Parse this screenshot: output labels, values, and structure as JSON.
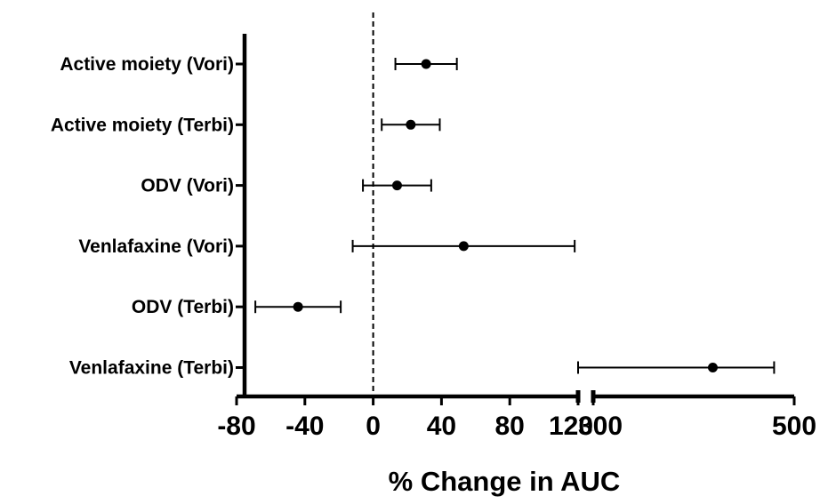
{
  "chart_data": {
    "type": "forest",
    "categories": [
      "Active moiety (Vori)",
      "Active moiety (Terbi)",
      "ODV (Vori)",
      "Venlafaxine (Vori)",
      "ODV (Terbi)",
      "Venlafaxine (Terbi)"
    ],
    "points": [
      {
        "label": "Active moiety (Vori)",
        "estimate": 31,
        "lower": 13,
        "upper": 49
      },
      {
        "label": "Active moiety (Terbi)",
        "estimate": 22,
        "lower": 5,
        "upper": 39
      },
      {
        "label": "ODV (Vori)",
        "estimate": 14,
        "lower": -6,
        "upper": 34
      },
      {
        "label": "Venlafaxine (Vori)",
        "estimate": 53,
        "lower": -12,
        "upper": 118
      },
      {
        "label": "ODV (Terbi)",
        "estimate": -44,
        "lower": -69,
        "upper": -19
      },
      {
        "label": "Venlafaxine (Terbi)",
        "estimate": 419,
        "lower": 285,
        "upper": 480
      }
    ],
    "xlabel": "% Change in AUC",
    "xaxis_segments": [
      {
        "range": [
          -80,
          120
        ],
        "ticks": [
          "-80",
          "-40",
          "0",
          "40",
          "80",
          "120"
        ]
      },
      {
        "range": [
          300,
          500
        ],
        "ticks": [
          "300",
          "500"
        ]
      }
    ],
    "reference_line": 0,
    "grid": false,
    "colors": {
      "marker": "#000000",
      "axis": "#000000"
    }
  }
}
